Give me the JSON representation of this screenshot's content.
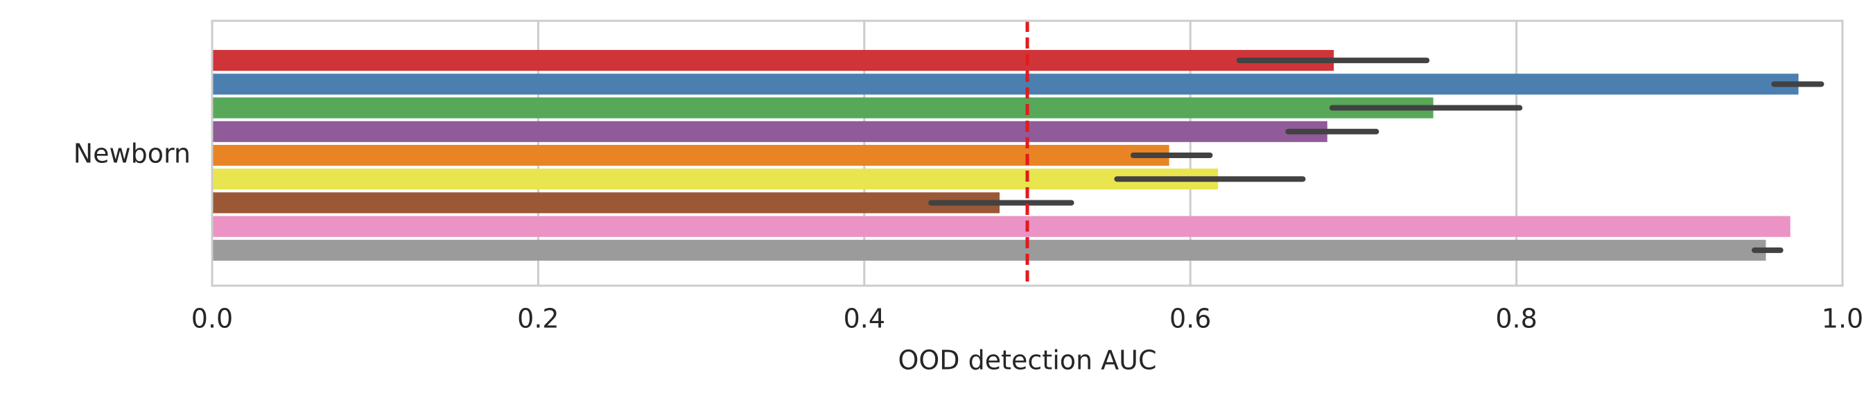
{
  "chart_data": {
    "type": "bar",
    "orientation": "horizontal",
    "categories": [
      "Newborn"
    ],
    "xlabel": "OOD detection AUC",
    "ylabel": "",
    "title": "",
    "xlim": [
      0.0,
      1.0
    ],
    "xticks": [
      "0.0",
      "0.2",
      "0.4",
      "0.6",
      "0.8",
      "1.0"
    ],
    "grid": true,
    "legend": "none",
    "reference_line": {
      "x": 0.5,
      "style": "dashed",
      "color": "#e31a1c"
    },
    "series": [
      {
        "color": "#cf3438",
        "values": [
          0.688
        ],
        "ci": [
          0.63,
          0.745
        ]
      },
      {
        "color": "#4a7fb0",
        "values": [
          0.973
        ],
        "ci": [
          0.958,
          0.987
        ]
      },
      {
        "color": "#58a85a",
        "values": [
          0.749
        ],
        "ci": [
          0.687,
          0.802
        ]
      },
      {
        "color": "#8f5b99",
        "values": [
          0.684
        ],
        "ci": [
          0.66,
          0.714
        ]
      },
      {
        "color": "#e88424",
        "values": [
          0.587
        ],
        "ci": [
          0.565,
          0.612
        ]
      },
      {
        "color": "#e8e54f",
        "values": [
          0.617
        ],
        "ci": [
          0.555,
          0.669
        ]
      },
      {
        "color": "#9b5836",
        "values": [
          0.483
        ],
        "ci": [
          0.441,
          0.527
        ]
      },
      {
        "color": "#ea93c4",
        "values": [
          0.968
        ],
        "ci": null
      },
      {
        "color": "#9b9b9b",
        "values": [
          0.953
        ],
        "ci": [
          0.946,
          0.962
        ]
      }
    ]
  }
}
